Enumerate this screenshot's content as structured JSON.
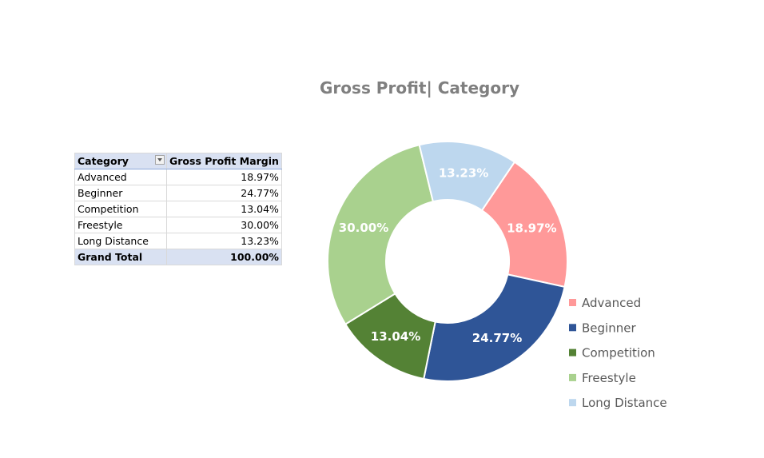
{
  "pivot_table": {
    "headers": [
      "Category",
      "Gross Profit Margin"
    ],
    "rows": [
      {
        "category": "Advanced",
        "value": "18.97%"
      },
      {
        "category": "Beginner",
        "value": "24.77%"
      },
      {
        "category": "Competition",
        "value": "13.04%"
      },
      {
        "category": "Freestyle",
        "value": "30.00%"
      },
      {
        "category": "Long Distance",
        "value": "13.23%"
      }
    ],
    "total": {
      "label": "Grand Total",
      "value": "100.00%"
    }
  },
  "chart_data": {
    "type": "pie",
    "donut": true,
    "title": "Gross Profit| Category",
    "categories": [
      "Advanced",
      "Beginner",
      "Competition",
      "Freestyle",
      "Long Distance"
    ],
    "values": [
      18.97,
      24.77,
      13.04,
      30.0,
      13.23
    ],
    "labels": [
      "18.97%",
      "24.77%",
      "13.04%",
      "30.00%",
      "13.23%"
    ],
    "colors": [
      "#ff9999",
      "#2f5597",
      "#548235",
      "#a9d18e",
      "#bdd7ee"
    ],
    "legend_position": "bottom-right"
  }
}
